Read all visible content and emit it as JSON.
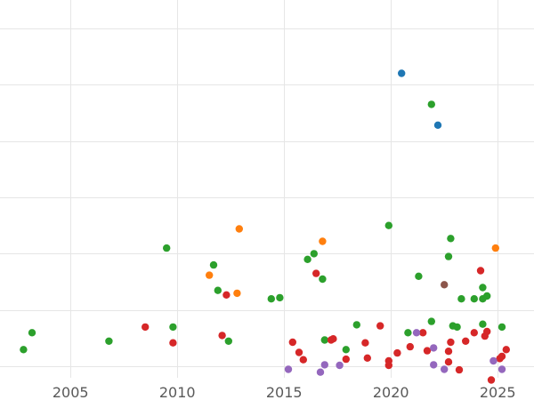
{
  "chart_data": {
    "type": "scatter",
    "title": "",
    "xlabel": "",
    "ylabel": "",
    "xlim": [
      2001.7,
      2026.7
    ],
    "ylim": [
      -0.2,
      6.5
    ],
    "x_ticks": [
      2005,
      2010,
      2015,
      2020,
      2025
    ],
    "y_gridlines": [
      0,
      1,
      2,
      3,
      4,
      5,
      6
    ],
    "y_tick_labels_visible": false,
    "grid": true,
    "legend": "none",
    "colors": {
      "blue": "#1f77b4",
      "orange": "#ff7f0e",
      "green": "#2ca02c",
      "red": "#d62728",
      "purple": "#9467bd",
      "brown": "#8c564b"
    },
    "series": [
      {
        "color_key": "blue",
        "points": [
          [
            2020.5,
            5.2
          ],
          [
            2022.2,
            4.28
          ]
        ]
      },
      {
        "color_key": "orange",
        "points": [
          [
            2012.9,
            2.44
          ],
          [
            2016.8,
            2.22
          ],
          [
            2024.9,
            2.1
          ],
          [
            2011.5,
            1.62
          ],
          [
            2012.8,
            1.3
          ]
        ]
      },
      {
        "color_key": "green",
        "points": [
          [
            2002.8,
            0.3
          ],
          [
            2003.2,
            0.6
          ],
          [
            2006.8,
            0.45
          ],
          [
            2009.5,
            2.1
          ],
          [
            2009.8,
            0.7
          ],
          [
            2011.7,
            1.8
          ],
          [
            2011.9,
            1.35
          ],
          [
            2012.4,
            0.45
          ],
          [
            2014.4,
            1.2
          ],
          [
            2014.8,
            1.22
          ],
          [
            2016.1,
            1.9
          ],
          [
            2016.4,
            2.0
          ],
          [
            2016.8,
            1.55
          ],
          [
            2016.9,
            0.47
          ],
          [
            2017.9,
            0.3
          ],
          [
            2018.4,
            0.74
          ],
          [
            2019.9,
            2.5
          ],
          [
            2020.8,
            0.6
          ],
          [
            2021.3,
            1.6
          ],
          [
            2021.9,
            0.8
          ],
          [
            2021.9,
            4.65
          ],
          [
            2022.7,
            1.95
          ],
          [
            2022.8,
            2.27
          ],
          [
            2022.9,
            0.72
          ],
          [
            2023.1,
            0.7
          ],
          [
            2023.3,
            1.2
          ],
          [
            2023.9,
            1.2
          ],
          [
            2024.3,
            1.2
          ],
          [
            2024.3,
            1.4
          ],
          [
            2024.3,
            0.75
          ],
          [
            2024.5,
            1.25
          ],
          [
            2025.2,
            0.7
          ]
        ]
      },
      {
        "color_key": "red",
        "points": [
          [
            2008.5,
            0.7
          ],
          [
            2009.8,
            0.42
          ],
          [
            2012.1,
            0.55
          ],
          [
            2012.3,
            1.27
          ],
          [
            2015.4,
            0.43
          ],
          [
            2015.7,
            0.25
          ],
          [
            2015.9,
            0.12
          ],
          [
            2016.5,
            1.65
          ],
          [
            2017.2,
            0.47
          ],
          [
            2017.3,
            0.49
          ],
          [
            2017.9,
            0.13
          ],
          [
            2018.8,
            0.42
          ],
          [
            2018.9,
            0.15
          ],
          [
            2019.5,
            0.72
          ],
          [
            2019.9,
            0.1
          ],
          [
            2019.9,
            0.02
          ],
          [
            2020.3,
            0.24
          ],
          [
            2020.9,
            0.35
          ],
          [
            2021.5,
            0.6
          ],
          [
            2021.7,
            0.28
          ],
          [
            2022.7,
            0.08
          ],
          [
            2022.7,
            0.27
          ],
          [
            2022.8,
            0.43
          ],
          [
            2023.2,
            -0.06
          ],
          [
            2023.5,
            0.45
          ],
          [
            2023.9,
            0.6
          ],
          [
            2024.2,
            1.7
          ],
          [
            2024.4,
            0.54
          ],
          [
            2024.5,
            0.62
          ],
          [
            2024.7,
            -0.24
          ],
          [
            2025.1,
            0.14
          ],
          [
            2025.2,
            0.18
          ],
          [
            2025.4,
            0.3
          ]
        ]
      },
      {
        "color_key": "purple",
        "points": [
          [
            2015.2,
            -0.05
          ],
          [
            2016.7,
            -0.1
          ],
          [
            2016.9,
            0.03
          ],
          [
            2017.6,
            0.02
          ],
          [
            2021.2,
            0.6
          ],
          [
            2022.0,
            0.33
          ],
          [
            2022.0,
            0.03
          ],
          [
            2022.5,
            -0.05
          ],
          [
            2024.8,
            0.1
          ],
          [
            2025.2,
            -0.05
          ]
        ]
      },
      {
        "color_key": "brown",
        "points": [
          [
            2022.5,
            1.45
          ]
        ]
      }
    ]
  }
}
